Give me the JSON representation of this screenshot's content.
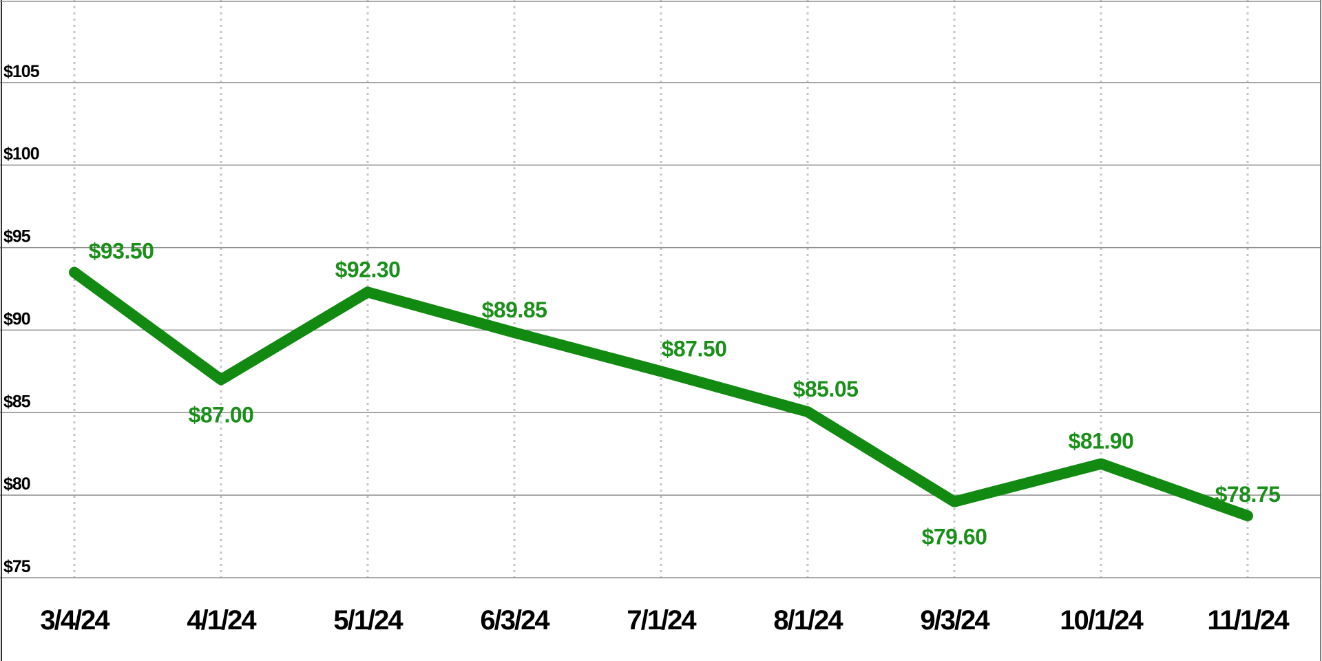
{
  "chart_data": {
    "type": "line",
    "title": "",
    "xlabel": "",
    "ylabel": "",
    "categories": [
      "3/4/24",
      "4/1/24",
      "5/1/24",
      "6/3/24",
      "7/1/24",
      "8/1/24",
      "9/3/24",
      "10/1/24",
      "11/1/24"
    ],
    "series": [
      {
        "values": [
          93.5,
          87.0,
          92.3,
          89.85,
          87.5,
          85.05,
          79.6,
          81.9,
          78.75
        ],
        "data_labels": [
          "$93.50",
          "$87.00",
          "$92.30",
          "$89.85",
          "$87.50",
          "$85.05",
          "$79.60",
          "$81.90",
          "$78.75"
        ],
        "color": "#128a12"
      }
    ],
    "ylim": [
      75,
      110
    ],
    "yticks": [
      75,
      80,
      85,
      90,
      95,
      100,
      105
    ],
    "ytick_labels": [
      "$75",
      "$80",
      "$85",
      "$90",
      "$95",
      "$100",
      "$105"
    ],
    "grid": {
      "horizontal": "solid",
      "vertical": "dotted"
    },
    "legend": "none",
    "label_color": "#1a8f1a"
  }
}
